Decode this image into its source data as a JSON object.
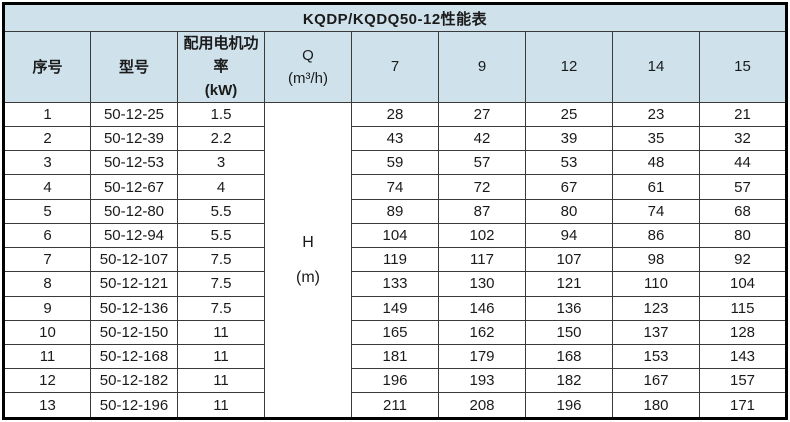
{
  "colors": {
    "header_bg": "#cfe2ec",
    "body_bg": "#ffffff",
    "outer_border": "#000000",
    "inner_border": "#3a3a3a",
    "text": "#1a1a1a"
  },
  "chart_data": {
    "type": "table",
    "title": "KQDP/KQDQ50-12性能表",
    "headers": {
      "no": "序号",
      "model": "型号",
      "power_line1": "配用电机功率",
      "power_line2": "(kW)",
      "q_line1": "Q",
      "q_line2": "(m³/h)"
    },
    "flow_headers": [
      "7",
      "9",
      "12",
      "14",
      "15"
    ],
    "h_column": {
      "line1": "H",
      "line2": "(m)"
    },
    "rows": [
      {
        "no": "1",
        "model": "50-12-25",
        "power": "1.5",
        "heads": [
          "28",
          "27",
          "25",
          "23",
          "21"
        ]
      },
      {
        "no": "2",
        "model": "50-12-39",
        "power": "2.2",
        "heads": [
          "43",
          "42",
          "39",
          "35",
          "32"
        ]
      },
      {
        "no": "3",
        "model": "50-12-53",
        "power": "3",
        "heads": [
          "59",
          "57",
          "53",
          "48",
          "44"
        ]
      },
      {
        "no": "4",
        "model": "50-12-67",
        "power": "4",
        "heads": [
          "74",
          "72",
          "67",
          "61",
          "57"
        ]
      },
      {
        "no": "5",
        "model": "50-12-80",
        "power": "5.5",
        "heads": [
          "89",
          "87",
          "80",
          "74",
          "68"
        ]
      },
      {
        "no": "6",
        "model": "50-12-94",
        "power": "5.5",
        "heads": [
          "104",
          "102",
          "94",
          "86",
          "80"
        ]
      },
      {
        "no": "7",
        "model": "50-12-107",
        "power": "7.5",
        "heads": [
          "119",
          "117",
          "107",
          "98",
          "92"
        ]
      },
      {
        "no": "8",
        "model": "50-12-121",
        "power": "7.5",
        "heads": [
          "133",
          "130",
          "121",
          "110",
          "104"
        ]
      },
      {
        "no": "9",
        "model": "50-12-136",
        "power": "7.5",
        "heads": [
          "149",
          "146",
          "136",
          "123",
          "115"
        ]
      },
      {
        "no": "10",
        "model": "50-12-150",
        "power": "11",
        "heads": [
          "165",
          "162",
          "150",
          "137",
          "128"
        ]
      },
      {
        "no": "11",
        "model": "50-12-168",
        "power": "11",
        "heads": [
          "181",
          "179",
          "168",
          "153",
          "143"
        ]
      },
      {
        "no": "12",
        "model": "50-12-182",
        "power": "11",
        "heads": [
          "196",
          "193",
          "182",
          "167",
          "157"
        ]
      },
      {
        "no": "13",
        "model": "50-12-196",
        "power": "11",
        "heads": [
          "211",
          "208",
          "196",
          "180",
          "171"
        ]
      }
    ]
  }
}
